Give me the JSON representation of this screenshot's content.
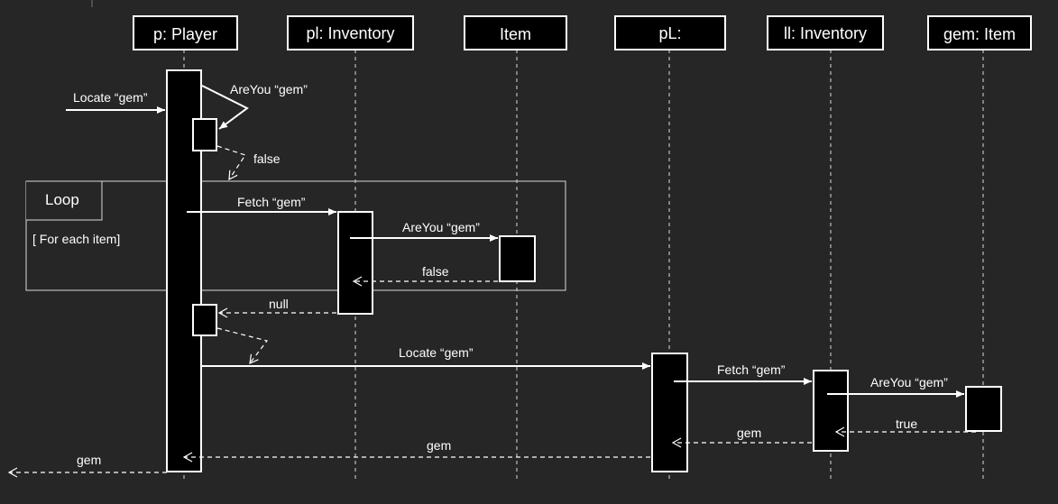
{
  "participants": [
    {
      "id": "p",
      "label": "p: Player"
    },
    {
      "id": "pl",
      "label": "pl: Inventory"
    },
    {
      "id": "item",
      "label": "Item"
    },
    {
      "id": "pL",
      "label": "pL:"
    },
    {
      "id": "ll",
      "label": "ll: Inventory"
    },
    {
      "id": "gem",
      "label": "gem: Item"
    }
  ],
  "loop": {
    "title": "Loop",
    "guard": "[ For each item]"
  },
  "messages": [
    {
      "id": "m1",
      "label": "Locate “gem”"
    },
    {
      "id": "m2",
      "label": "AreYou “gem”"
    },
    {
      "id": "m3",
      "label": "false"
    },
    {
      "id": "m4",
      "label": "Fetch “gem”"
    },
    {
      "id": "m5",
      "label": "AreYou “gem”"
    },
    {
      "id": "m6",
      "label": "false"
    },
    {
      "id": "m7",
      "label": "null"
    },
    {
      "id": "m8",
      "label": "Locate “gem”"
    },
    {
      "id": "m9",
      "label": "Fetch “gem”"
    },
    {
      "id": "m10",
      "label": "AreYou “gem”"
    },
    {
      "id": "m11",
      "label": "true"
    },
    {
      "id": "m12",
      "label": "gem"
    },
    {
      "id": "m13",
      "label": "gem"
    },
    {
      "id": "m14",
      "label": "gem"
    }
  ]
}
